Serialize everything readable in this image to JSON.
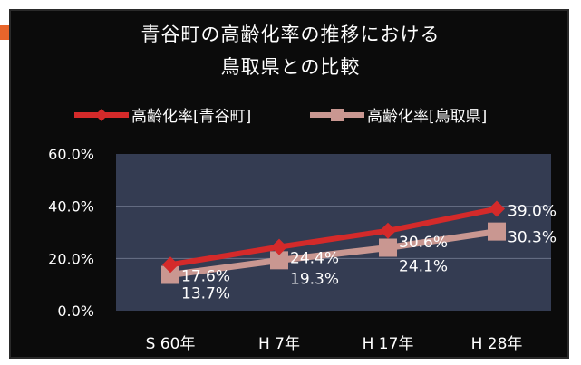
{
  "colors": {
    "background": "#0b0b0b",
    "plot_area": "#343c52",
    "aomachi_series": "#d42a2a",
    "tottori_series": "#c99791",
    "text": "#ffffff",
    "accent": "#e8652b"
  },
  "chart_data": {
    "type": "line",
    "title_lines": [
      "青谷町の高齢化率の推移における",
      "鳥取県との比較"
    ],
    "categories": [
      "S 60年",
      "H 7年",
      "H 17年",
      "H 28年"
    ],
    "series": [
      {
        "name": "高齢化率[青谷町]",
        "values": [
          17.6,
          24.4,
          30.6,
          39.0
        ],
        "labels": [
          "17.6%",
          "24.4%",
          "30.6%",
          "39.0%"
        ]
      },
      {
        "name": "高齢化率[鳥取県]",
        "values": [
          13.7,
          19.3,
          24.1,
          30.3
        ],
        "labels": [
          "13.7%",
          "19.3%",
          "24.1%",
          "30.3%"
        ]
      }
    ],
    "y_ticks": [
      "0.0%",
      "20.0%",
      "40.0%",
      "60.0%"
    ],
    "ylim": [
      0,
      60
    ],
    "grid": true,
    "legend": "top"
  }
}
